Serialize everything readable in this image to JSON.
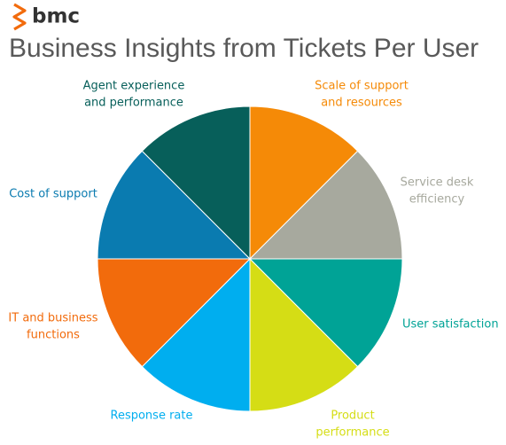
{
  "header": {
    "logo": "bmc",
    "title": "Business Insights from Tickets Per User"
  },
  "segments": [
    {
      "label": [
        "Scale of support",
        "and resources"
      ],
      "color": "#f58a07"
    },
    {
      "label": [
        "Service desk",
        "efficiency"
      ],
      "color": "#a7a99e"
    },
    {
      "label": [
        "User satisfaction"
      ],
      "color": "#00a396"
    },
    {
      "label": [
        "Product",
        "performance"
      ],
      "color": "#d5dd15"
    },
    {
      "label": [
        "Response rate"
      ],
      "color": "#00aeef"
    },
    {
      "label": [
        "IT and business",
        "functions"
      ],
      "color": "#f26b0c"
    },
    {
      "label": [
        "Cost of support"
      ],
      "color": "#0a7bb0"
    },
    {
      "label": [
        "Agent experience",
        "and performance"
      ],
      "color": "#075f5a"
    }
  ]
}
